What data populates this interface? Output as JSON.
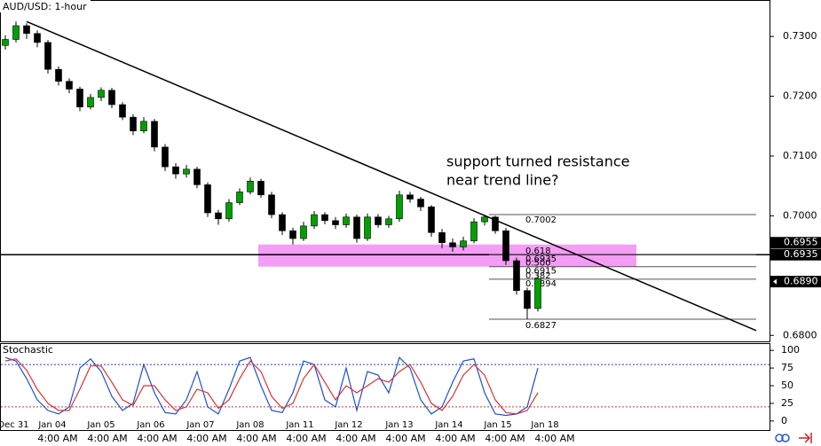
{
  "chart_data": {
    "type": "candlestick",
    "title": "AUD/USD: 1-hour",
    "annotation": [
      "support turned resistance",
      "near trend line?"
    ],
    "ylim": [
      0.679,
      0.7361
    ],
    "yticks": [
      {
        "value": 0.73,
        "label": "0.7300"
      },
      {
        "value": 0.72,
        "label": "0.7200"
      },
      {
        "value": 0.71,
        "label": "0.7100"
      },
      {
        "value": 0.7,
        "label": "0.7000"
      },
      {
        "value": 0.68,
        "label": "0.6800"
      }
    ],
    "up_color": "#00a000",
    "down_color": "#000000",
    "open": [
      0.7285,
      0.7295,
      0.7318,
      0.7305,
      0.729,
      0.7245,
      0.7225,
      0.7212,
      0.7182,
      0.7198,
      0.721,
      0.7186,
      0.7165,
      0.7142,
      0.7158,
      0.7115,
      0.7082,
      0.707,
      0.7078,
      0.7052,
      0.7005,
      0.6995,
      0.7022,
      0.704,
      0.7058,
      0.7035,
      0.7002,
      0.6975,
      0.6962,
      0.6983,
      0.7002,
      0.6992,
      0.6985,
      0.6998,
      0.6962,
      0.6998,
      0.6985,
      0.6995,
      0.7035,
      0.7028,
      0.7015,
      0.6972,
      0.6955,
      0.6948,
      0.6958,
      0.699,
      0.6998,
      0.6975,
      0.6925,
      0.6875,
      0.6845
    ],
    "high": [
      0.7302,
      0.7325,
      0.7322,
      0.731,
      0.7294,
      0.725,
      0.723,
      0.7216,
      0.7204,
      0.7215,
      0.7214,
      0.719,
      0.717,
      0.7165,
      0.7162,
      0.712,
      0.7088,
      0.7085,
      0.7082,
      0.7056,
      0.701,
      0.7028,
      0.7046,
      0.7064,
      0.7062,
      0.704,
      0.7006,
      0.698,
      0.699,
      0.7008,
      0.7006,
      0.6998,
      0.7004,
      0.7002,
      0.7004,
      0.7003,
      0.7,
      0.7042,
      0.704,
      0.7032,
      0.7018,
      0.6978,
      0.6962,
      0.6965,
      0.6996,
      0.7002,
      0.7,
      0.698,
      0.693,
      0.688,
      0.6902
    ],
    "low": [
      0.7278,
      0.729,
      0.7296,
      0.7282,
      0.7238,
      0.7218,
      0.7205,
      0.7175,
      0.7178,
      0.7192,
      0.718,
      0.716,
      0.7135,
      0.7138,
      0.7108,
      0.7075,
      0.7062,
      0.7064,
      0.7046,
      0.6998,
      0.6985,
      0.699,
      0.7018,
      0.7036,
      0.703,
      0.6996,
      0.6968,
      0.6952,
      0.6958,
      0.6978,
      0.6986,
      0.6978,
      0.698,
      0.6955,
      0.6958,
      0.698,
      0.698,
      0.699,
      0.7022,
      0.7008,
      0.6965,
      0.6946,
      0.694,
      0.6942,
      0.6954,
      0.6984,
      0.697,
      0.6918,
      0.6868,
      0.6827,
      0.684
    ],
    "close": [
      0.7295,
      0.7318,
      0.7305,
      0.729,
      0.7245,
      0.7225,
      0.7212,
      0.7182,
      0.7198,
      0.721,
      0.7186,
      0.7165,
      0.7142,
      0.7158,
      0.7115,
      0.7082,
      0.707,
      0.7078,
      0.7052,
      0.7005,
      0.6995,
      0.7022,
      0.704,
      0.7058,
      0.7035,
      0.7002,
      0.6975,
      0.6962,
      0.6983,
      0.7002,
      0.6992,
      0.6985,
      0.6998,
      0.6962,
      0.6998,
      0.6985,
      0.6995,
      0.7035,
      0.7028,
      0.7015,
      0.6972,
      0.6955,
      0.6948,
      0.6958,
      0.699,
      0.6998,
      0.6975,
      0.6925,
      0.6875,
      0.6845,
      0.6895
    ],
    "trend_line": [
      0.7325,
      0.6808
    ],
    "support_line": 0.6935,
    "zone": [
      0.6915,
      0.6952
    ],
    "fib_levels": [
      {
        "value": 0.7002,
        "label": "0.7002"
      },
      {
        "ratio": "0.618",
        "value": 0.6935,
        "label": "0.6935"
      },
      {
        "ratio": "0.500",
        "value": 0.6915,
        "label": "0.6915"
      },
      {
        "ratio": "0.382",
        "value": 0.6894,
        "label": "0.6894"
      },
      {
        "value": 0.6827,
        "label": "0.6827"
      }
    ],
    "price_markers": [
      {
        "value": 0.6955,
        "label": "0.6955"
      },
      {
        "value": 0.6935,
        "label": "0.6935"
      },
      {
        "value": 0.689,
        "label": "0.6890"
      }
    ],
    "stochastic": {
      "title": "Stochastic",
      "ylim": [
        -14,
        109
      ],
      "yticks": [
        100,
        75,
        50,
        25,
        0
      ],
      "levels": [
        80,
        20
      ],
      "series": [
        {
          "color": "#1f4fd8",
          "values": [
            90,
            85,
            60,
            30,
            15,
            10,
            20,
            75,
            88,
            70,
            35,
            15,
            25,
            80,
            40,
            12,
            10,
            30,
            70,
            20,
            10,
            45,
            85,
            90,
            50,
            15,
            12,
            40,
            85,
            80,
            30,
            20,
            75,
            15,
            70,
            65,
            40,
            90,
            75,
            30,
            10,
            20,
            55,
            85,
            88,
            40,
            10,
            8,
            10,
            20,
            75
          ]
        },
        {
          "color": "#e03030",
          "values": [
            85,
            88,
            72,
            45,
            25,
            15,
            15,
            45,
            78,
            78,
            55,
            30,
            22,
            50,
            50,
            30,
            15,
            20,
            45,
            40,
            18,
            30,
            60,
            85,
            70,
            35,
            18,
            25,
            60,
            80,
            55,
            30,
            50,
            40,
            50,
            60,
            55,
            70,
            80,
            55,
            25,
            15,
            35,
            65,
            80,
            65,
            30,
            12,
            10,
            15,
            40
          ]
        }
      ]
    },
    "dates": [
      "Dec 31",
      "Jan 04",
      "Jan 05",
      "Jan 06",
      "Jan 07",
      "Jan 08",
      "Jan 11",
      "Jan 12",
      "Jan 13",
      "Jan 14",
      "Jan 15",
      "Jan 18"
    ],
    "times": [
      "4:00 AM",
      "4:00 AM",
      "4:00 AM",
      "4:00 AM",
      "4:00 AM",
      "4:00 AM",
      "4:00 AM",
      "4:00 AM",
      "4:00 AM",
      "4:00 AM",
      "4:00 AM"
    ]
  }
}
